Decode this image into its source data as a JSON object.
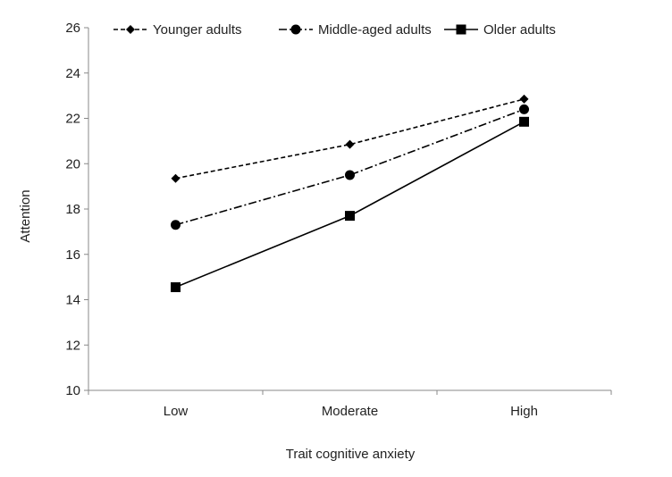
{
  "chart_data": {
    "type": "line",
    "categories": [
      "Low",
      "Moderate",
      "High"
    ],
    "series": [
      {
        "name": "Younger adults",
        "values": [
          19.35,
          20.85,
          22.85
        ],
        "marker": "diamond",
        "dash": "dashed",
        "color": "#000000"
      },
      {
        "name": "Middle-aged adults",
        "values": [
          17.3,
          19.5,
          22.4
        ],
        "marker": "circle",
        "dash": "dash-dot",
        "color": "#000000"
      },
      {
        "name": "Older adults",
        "values": [
          14.55,
          17.7,
          21.85
        ],
        "marker": "square",
        "dash": "solid",
        "color": "#000000"
      }
    ],
    "xlabel": "Trait cognitive anxiety",
    "ylabel": "Attention",
    "ylim": [
      10,
      26
    ],
    "yticks": [
      "10",
      "12",
      "14",
      "16",
      "18",
      "20",
      "22",
      "24",
      "26"
    ],
    "grid": false,
    "legend_position": "top"
  }
}
